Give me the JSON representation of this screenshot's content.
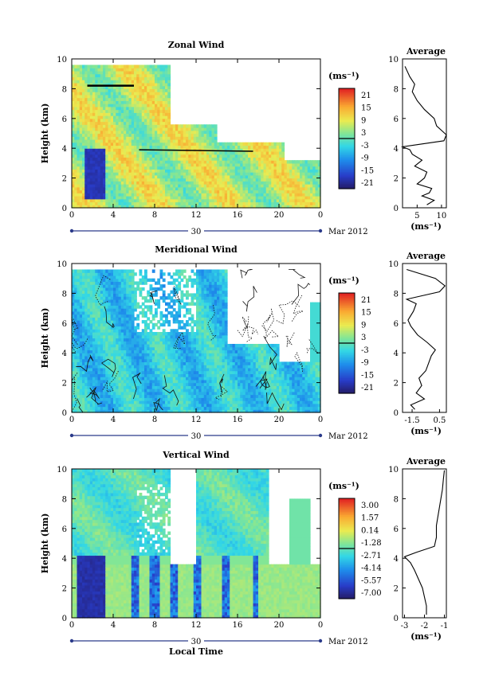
{
  "chart_data": [
    {
      "type": "heatmap",
      "title": "Zonal Wind",
      "ylabel": "Height (km)",
      "xlim": [
        0,
        24
      ],
      "ylim": [
        0,
        10
      ],
      "x_ticks": [
        "0",
        "4",
        "8",
        "12",
        "16",
        "20",
        "0"
      ],
      "y_ticks": [
        "0",
        "2",
        "4",
        "6",
        "8",
        "10"
      ],
      "date_marker": "30",
      "date_label": "Mar 2012",
      "colorbar": {
        "unit": "(ms⁻¹)",
        "ticks": [
          "21",
          "15",
          "9",
          "3",
          "-3",
          "-9",
          "-15",
          "-21"
        ],
        "range": [
          -24,
          24
        ]
      },
      "average": {
        "title": "Average",
        "x_ticks": [
          "5",
          "10"
        ],
        "xlim": [
          2,
          11
        ],
        "xunit": "(ms⁻¹)",
        "profile": [
          [
            7,
            0.2
          ],
          [
            8.5,
            0.5
          ],
          [
            6,
            0.8
          ],
          [
            7.5,
            1
          ],
          [
            8,
            1.3
          ],
          [
            5,
            1.6
          ],
          [
            6.5,
            2
          ],
          [
            7,
            2.4
          ],
          [
            4.5,
            2.8
          ],
          [
            6,
            3.2
          ],
          [
            4,
            3.6
          ],
          [
            3.5,
            3.9
          ],
          [
            2,
            4.1
          ],
          [
            10.5,
            4.5
          ],
          [
            11,
            4.9
          ],
          [
            9,
            5.5
          ],
          [
            8.5,
            6
          ],
          [
            6.5,
            6.6
          ],
          [
            5,
            7.2
          ],
          [
            4,
            7.8
          ],
          [
            4.5,
            8.3
          ],
          [
            3.5,
            8.8
          ],
          [
            2.5,
            9.5
          ]
        ]
      }
    },
    {
      "type": "heatmap",
      "title": "Meridional Wind",
      "ylabel": "Height (km)",
      "xlim": [
        0,
        24
      ],
      "ylim": [
        0,
        10
      ],
      "x_ticks": [
        "0",
        "4",
        "8",
        "12",
        "16",
        "20",
        "0"
      ],
      "y_ticks": [
        "0",
        "2",
        "4",
        "6",
        "8",
        "10"
      ],
      "date_marker": "30",
      "date_label": "Mar 2012",
      "colorbar": {
        "unit": "(ms⁻¹)",
        "ticks": [
          "21",
          "15",
          "9",
          "3",
          "-3",
          "-9",
          "-15",
          "-21"
        ],
        "range": [
          -24,
          24
        ]
      },
      "average": {
        "title": "Average",
        "x_ticks": [
          "-1.5",
          "0.5"
        ],
        "xlim": [
          -2.2,
          1.0
        ],
        "xunit": "(ms⁻¹)",
        "profile": [
          [
            -1.3,
            0.2
          ],
          [
            -1.6,
            0.5
          ],
          [
            -0.6,
            0.9
          ],
          [
            -1.2,
            1.3
          ],
          [
            -0.8,
            1.8
          ],
          [
            -1.0,
            2.3
          ],
          [
            -0.5,
            2.8
          ],
          [
            -0.3,
            3.3
          ],
          [
            -0.1,
            3.8
          ],
          [
            0.2,
            4.2
          ],
          [
            -0.4,
            4.7
          ],
          [
            -1.1,
            5.2
          ],
          [
            -1.6,
            5.8
          ],
          [
            -1.8,
            6.2
          ],
          [
            -1.4,
            6.8
          ],
          [
            -1.2,
            7.3
          ],
          [
            -1.9,
            7.6
          ],
          [
            0.5,
            8.1
          ],
          [
            0.9,
            8.5
          ],
          [
            0.2,
            9.0
          ],
          [
            -1.9,
            9.6
          ]
        ]
      }
    },
    {
      "type": "heatmap",
      "title": "Vertical Wind",
      "xlabel": "Local Time",
      "ylabel": "Height (km)",
      "xlim": [
        0,
        24
      ],
      "ylim": [
        0,
        10
      ],
      "x_ticks": [
        "0",
        "4",
        "8",
        "12",
        "16",
        "20",
        "0"
      ],
      "y_ticks": [
        "0",
        "2",
        "4",
        "6",
        "8",
        "10"
      ],
      "date_marker": "30",
      "date_label": "Mar 2012",
      "colorbar": {
        "unit": "(ms⁻¹)",
        "ticks": [
          "3.00",
          "1.57",
          "0.14",
          "-1.28",
          "-2.71",
          "-4.14",
          "-5.57",
          "-7.00"
        ],
        "range": [
          -7.7,
          3.7
        ]
      },
      "average": {
        "title": "Average",
        "x_ticks": [
          "-3",
          "-2",
          "-1"
        ],
        "xlim": [
          -3.1,
          -0.9
        ],
        "xunit": "(ms⁻¹)",
        "profile": [
          [
            -1.9,
            0.2
          ],
          [
            -1.9,
            0.8
          ],
          [
            -2.0,
            1.4
          ],
          [
            -2.1,
            2.0
          ],
          [
            -2.3,
            2.6
          ],
          [
            -2.5,
            3.2
          ],
          [
            -2.7,
            3.7
          ],
          [
            -3.0,
            4.1
          ],
          [
            -2.4,
            4.4
          ],
          [
            -1.5,
            4.8
          ],
          [
            -1.4,
            5.4
          ],
          [
            -1.4,
            6.2
          ],
          [
            -1.3,
            7.0
          ],
          [
            -1.2,
            7.8
          ],
          [
            -1.1,
            8.6
          ],
          [
            -1.05,
            9.3
          ],
          [
            -1.0,
            9.9
          ]
        ]
      }
    }
  ]
}
